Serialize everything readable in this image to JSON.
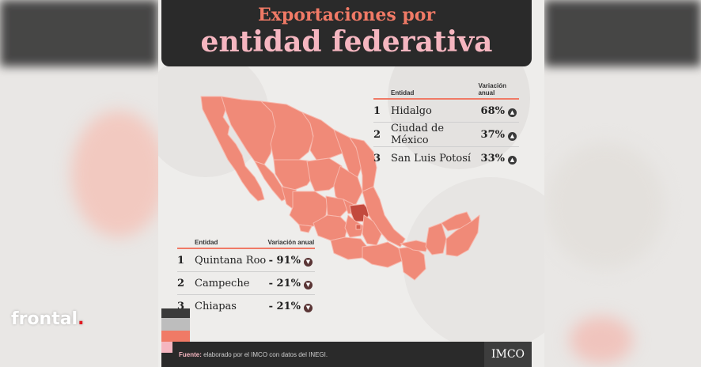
{
  "title_line1": "Exportaciones por",
  "title_line2": "entidad federativa",
  "watermark": {
    "text": "frontal",
    "dot": "."
  },
  "table_top": {
    "header_entity": "Entidad",
    "header_variation": "Variación anual",
    "rows": [
      {
        "rank": "1",
        "entity": "Hidalgo",
        "value": "68%",
        "direction": "up"
      },
      {
        "rank": "2",
        "entity": "Ciudad de México",
        "value": "37%",
        "direction": "up"
      },
      {
        "rank": "3",
        "entity": "San Luis Potosí",
        "value": "33%",
        "direction": "up"
      }
    ]
  },
  "table_bottom": {
    "header_entity": "Entidad",
    "header_variation": "Variación anual",
    "rows": [
      {
        "rank": "1",
        "entity": "Quintana Roo",
        "value": "- 91%",
        "direction": "down"
      },
      {
        "rank": "2",
        "entity": "Campeche",
        "value": "- 21%",
        "direction": "down"
      },
      {
        "rank": "3",
        "entity": "Chiapas",
        "value": "- 21%",
        "direction": "down"
      }
    ]
  },
  "footer": {
    "source_label": "Fuente:",
    "source_text": "elaborado por el IMCO con datos del INEGI."
  },
  "logo": "IMCO",
  "colors": {
    "accent": "#f07a66",
    "title_pink": "#f5b6c0",
    "dark": "#2a2a2a",
    "map_fill": "#f08a78",
    "highlight_state": "#c2493d"
  },
  "icons": {
    "up": "triangle-up-icon",
    "down": "triangle-down-icon"
  }
}
